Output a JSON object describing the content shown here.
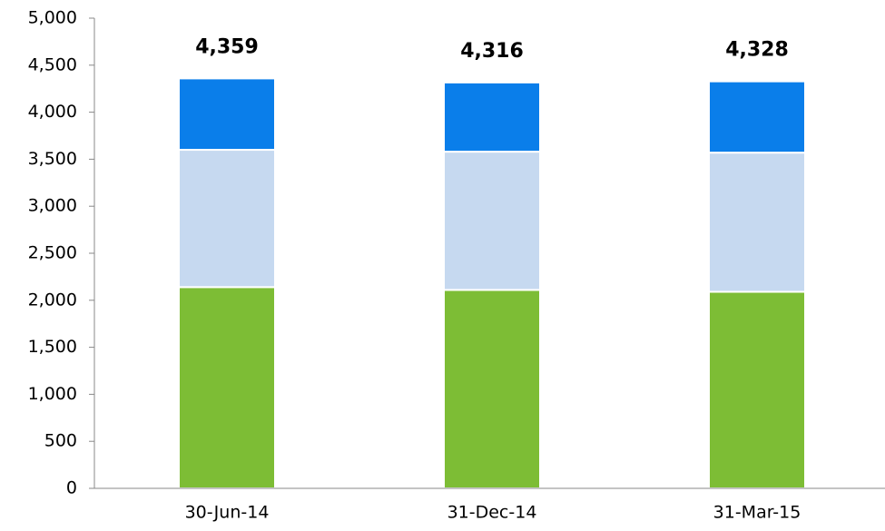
{
  "chart_data": {
    "type": "stacked_bar",
    "categories": [
      "30-Jun-14",
      "31-Dec-14",
      "31-Mar-15"
    ],
    "series": [
      {
        "color": "#7dbd35",
        "values": [
          2140,
          2110,
          2090
        ]
      },
      {
        "color": "#c6d9f0",
        "values": [
          1460,
          1470,
          1480
        ]
      },
      {
        "color": "#0a7eea",
        "values": [
          759,
          736,
          758
        ]
      }
    ],
    "totals": [
      4359,
      4316,
      4328
    ],
    "total_labels": [
      "4,359",
      "4,316",
      "4,328"
    ],
    "ylim": [
      0,
      5000
    ],
    "yticks": [
      0,
      500,
      {
        "value": 1000,
        "label": "1,000"
      },
      {
        "value": 1500,
        "label": "1,500"
      },
      {
        "value": 2000,
        "label": "2,000"
      },
      {
        "value": 2500,
        "label": "2,500"
      },
      {
        "value": 3000,
        "label": "3,000"
      },
      {
        "value": 3500,
        "label": "3,500"
      },
      {
        "value": 4000,
        "label": "4,000"
      },
      {
        "value": 4500,
        "label": "4,500"
      },
      {
        "value": 5000,
        "label": "5,000"
      }
    ],
    "grid": false
  }
}
